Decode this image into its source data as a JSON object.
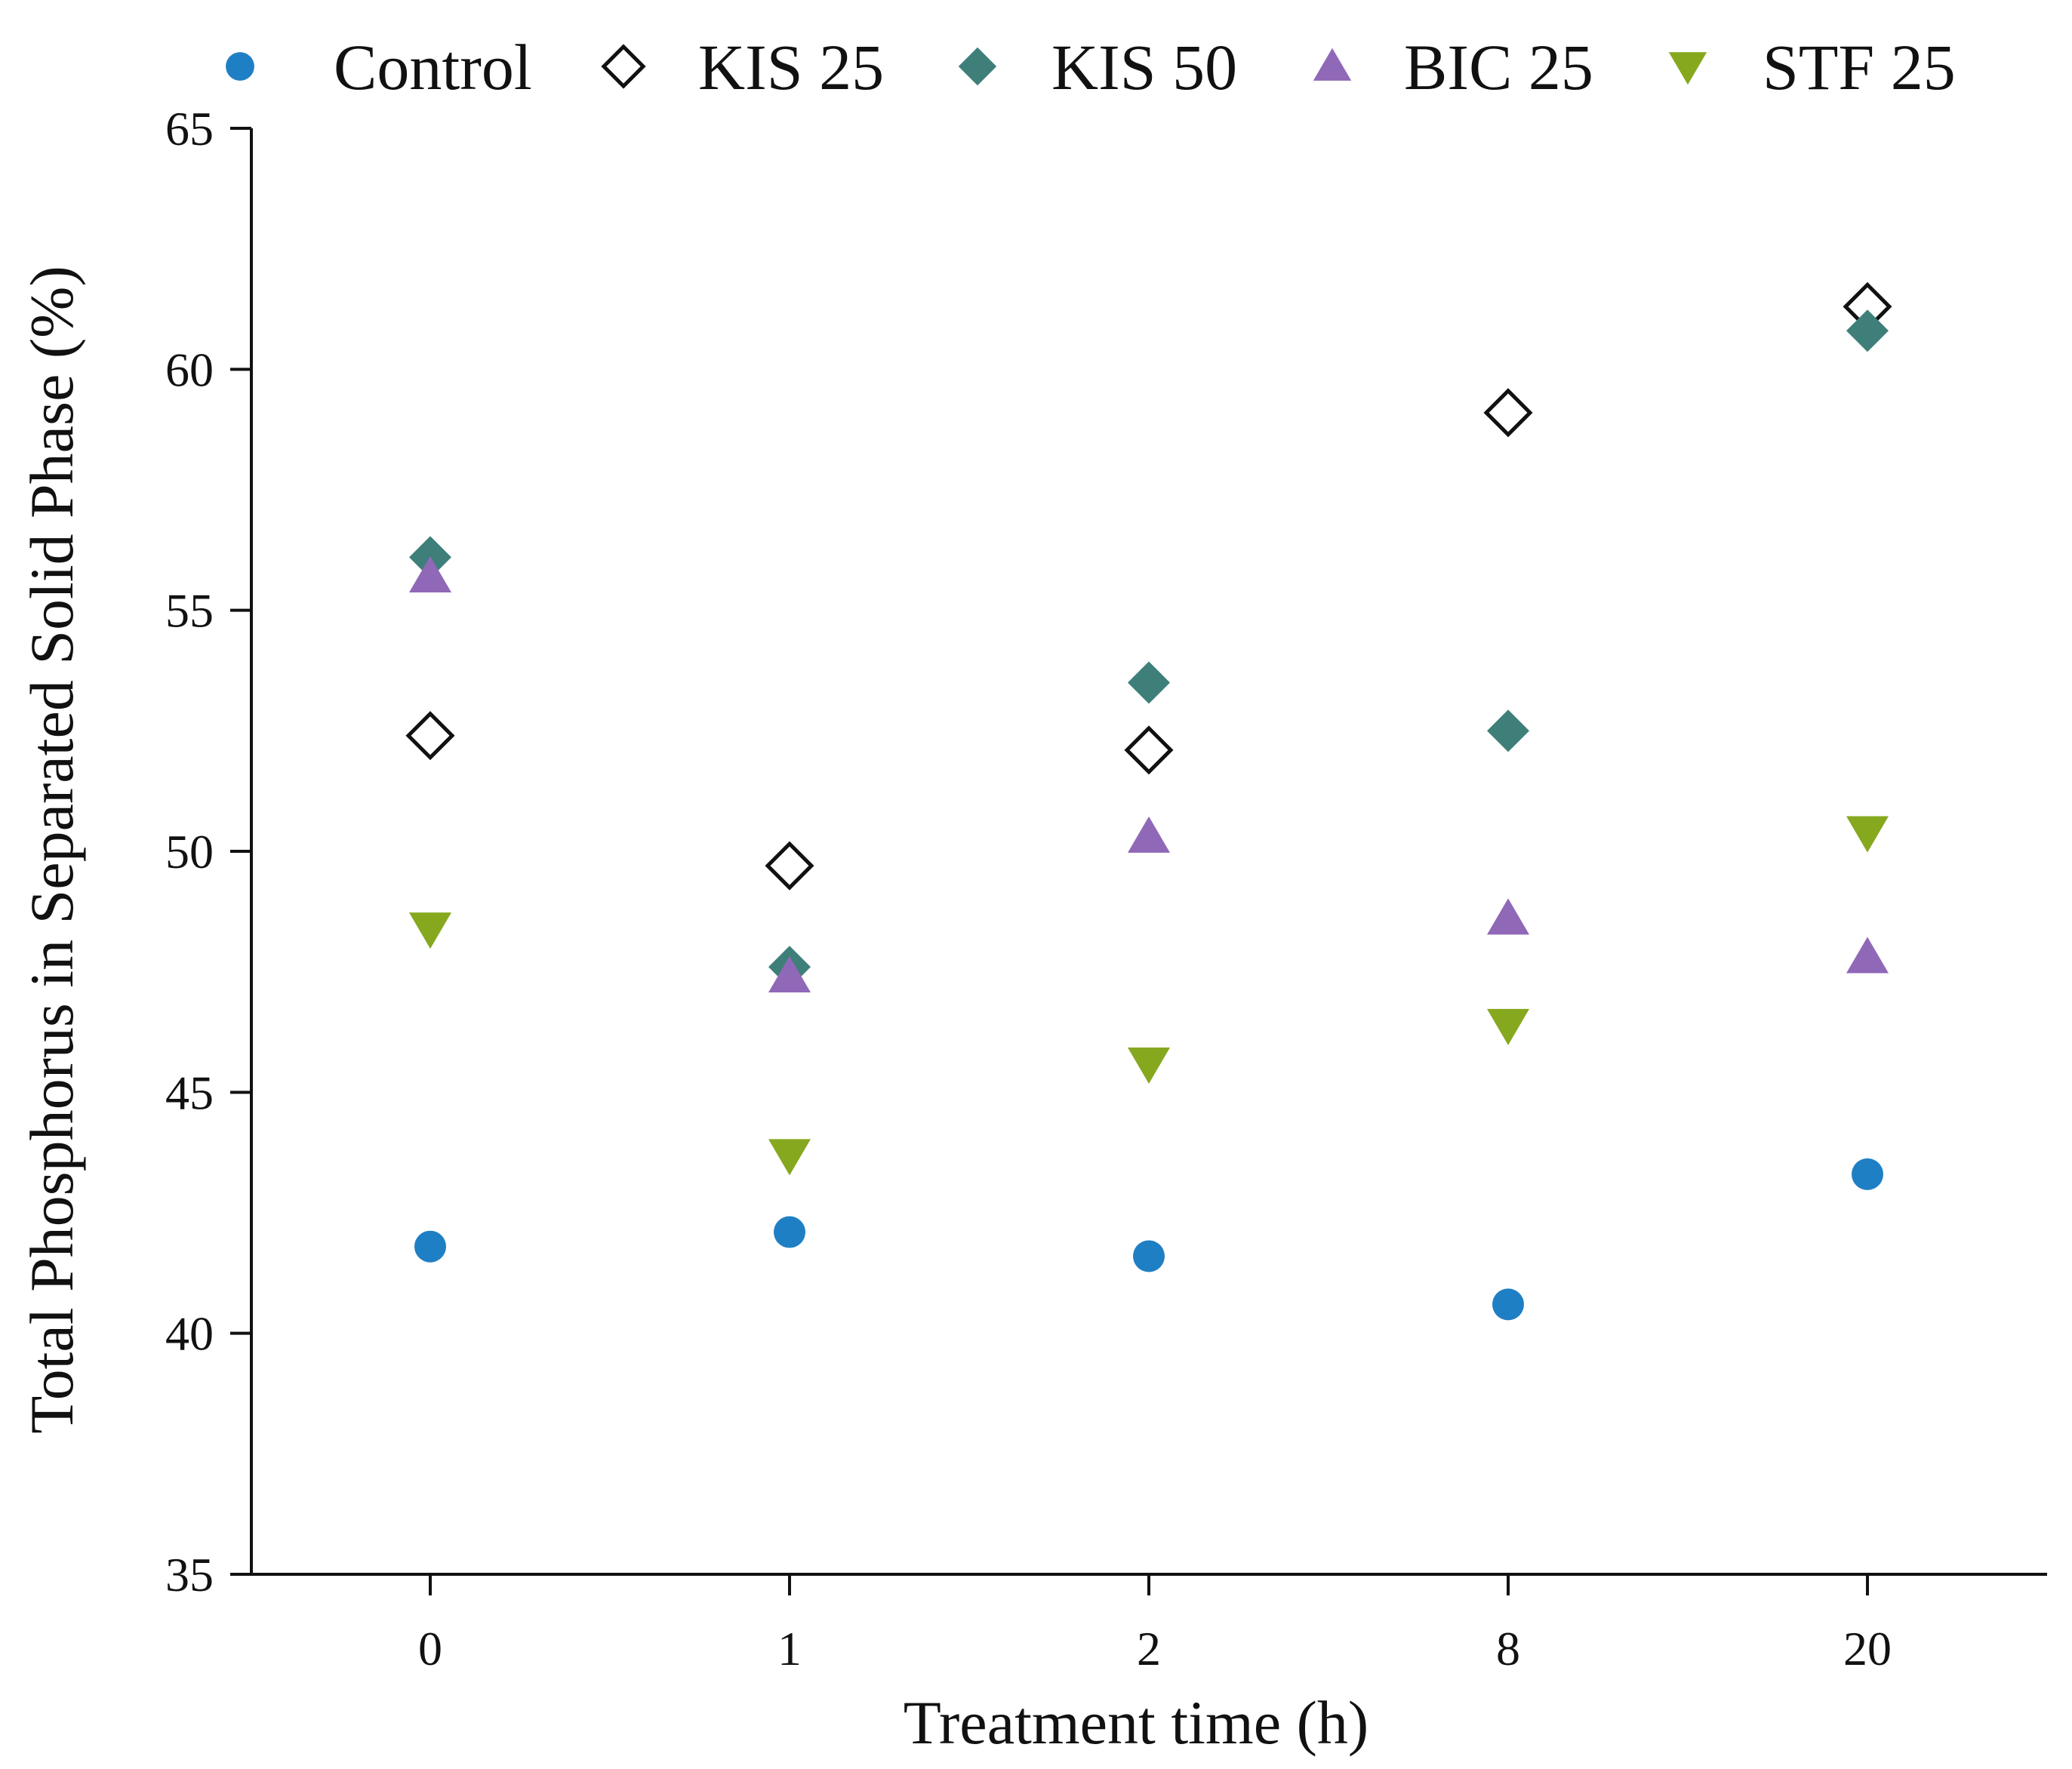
{
  "chart_data": {
    "type": "scatter",
    "title": "",
    "xlabel": "Treatment time (h)",
    "ylabel": "Total Phosphorus in Separated Solid Phase (%)",
    "categories": [
      "0",
      "1",
      "2",
      "8",
      "20"
    ],
    "ylim": [
      35,
      65
    ],
    "yticks": [
      "35",
      "40",
      "45",
      "50",
      "55",
      "60",
      "65"
    ],
    "grid": false,
    "legend_position": "top",
    "series": [
      {
        "name": "Control",
        "marker": "circle",
        "color": "#1f7fc4",
        "values": [
          41.8,
          42.1,
          41.6,
          40.6,
          43.3
        ]
      },
      {
        "name": "KIS 25",
        "marker": "diamond-open",
        "color": "#111111",
        "values": [
          52.4,
          49.7,
          52.1,
          59.1,
          61.3
        ]
      },
      {
        "name": "KIS 50",
        "marker": "diamond",
        "color": "#3e7f7a",
        "values": [
          56.1,
          47.6,
          53.5,
          52.5,
          60.8
        ]
      },
      {
        "name": "BIC 25",
        "marker": "triangle-up",
        "color": "#9068b8",
        "values": [
          55.7,
          47.4,
          50.3,
          48.6,
          47.8
        ]
      },
      {
        "name": "STF 25",
        "marker": "triangle-down",
        "color": "#86a81f",
        "values": [
          48.4,
          43.7,
          45.6,
          46.4,
          50.4
        ]
      }
    ]
  }
}
